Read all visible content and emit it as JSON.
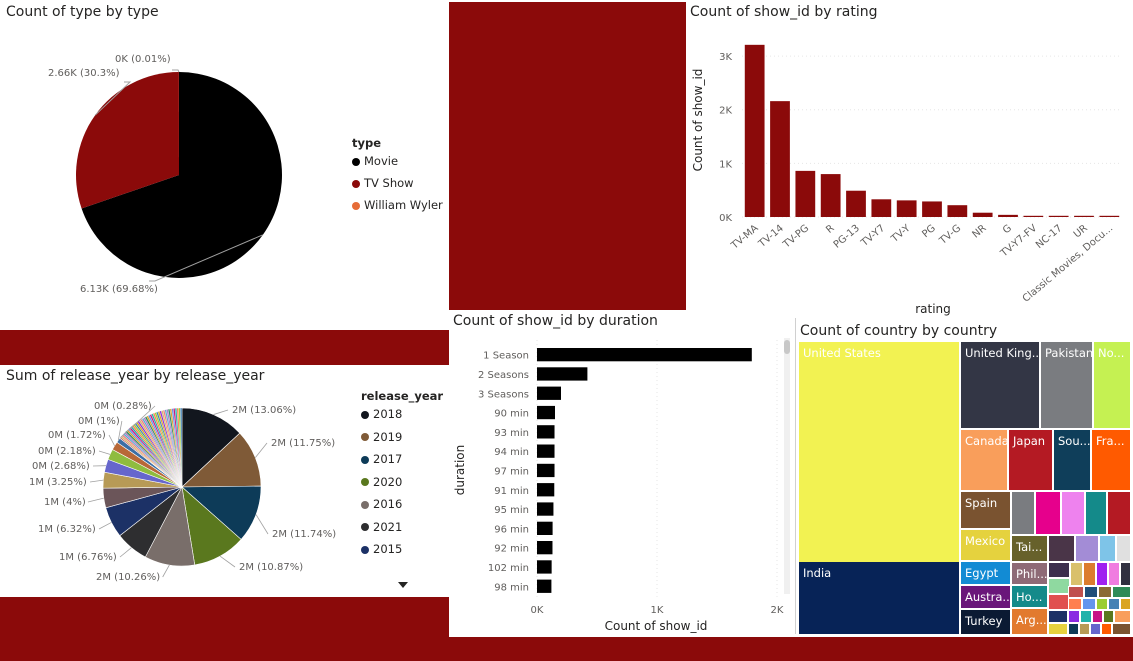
{
  "colors": {
    "accent": "#8b0a0a",
    "black": "#000000",
    "orange": "#e66c37"
  },
  "chart_data": [
    {
      "id": "type",
      "type": "pie",
      "title": "Count of type by type",
      "legend_title": "type",
      "legend_position": "right",
      "slices": [
        {
          "label": "Movie",
          "value": 6130,
          "color": "#000000",
          "data_label": "6.13K (69.68%)"
        },
        {
          "label": "TV Show",
          "value": 2660,
          "color": "#8b0a0a",
          "data_label": "2.66K (30.3%)"
        },
        {
          "label": "William Wyler",
          "value": 1,
          "color": "#e66c37",
          "data_label": "0K (0.01%)"
        }
      ]
    },
    {
      "id": "rating",
      "type": "bar",
      "title": "Count of show_id by rating",
      "xlabel": "rating",
      "ylabel": "Count of show_id",
      "ylim": [
        0,
        3300
      ],
      "yticks": [
        "0K",
        "1K",
        "2K",
        "3K"
      ],
      "ytick_values": [
        0,
        1000,
        2000,
        3000
      ],
      "color": "#8b0a0a",
      "categories": [
        "TV-MA",
        "TV-14",
        "TV-PG",
        "R",
        "PG-13",
        "TV-Y7",
        "TV-Y",
        "PG",
        "TV-G",
        "NR",
        "G",
        "TV-Y7-FV",
        "NC-17",
        "UR",
        "Classic Movies, Docu..."
      ],
      "values": [
        3210,
        2160,
        860,
        800,
        490,
        330,
        310,
        290,
        220,
        80,
        40,
        6,
        3,
        3,
        1
      ]
    },
    {
      "id": "release_year",
      "type": "pie",
      "title": "Sum of release_year by release_year",
      "legend_title": "release_year",
      "legend_position": "right",
      "legend": [
        {
          "label": "2018",
          "color": "#12161e"
        },
        {
          "label": "2019",
          "color": "#7f5a37"
        },
        {
          "label": "2017",
          "color": "#0d3b58"
        },
        {
          "label": "2020",
          "color": "#5a781e"
        },
        {
          "label": "2016",
          "color": "#796e6a"
        },
        {
          "label": "2021",
          "color": "#2e2e30"
        },
        {
          "label": "2015",
          "color": "#1c3166"
        }
      ],
      "slices": [
        {
          "value": 13.06,
          "color": "#12161e",
          "data_label": "2M (13.06%)"
        },
        {
          "value": 11.75,
          "color": "#7f5a37",
          "data_label": "2M (11.75%)"
        },
        {
          "value": 11.74,
          "color": "#0d3b58",
          "data_label": "2M (11.74%)"
        },
        {
          "value": 10.87,
          "color": "#5a781e",
          "data_label": "2M (10.87%)"
        },
        {
          "value": 10.26,
          "color": "#796e6a",
          "data_label": "2M (10.26%)"
        },
        {
          "value": 6.76,
          "color": "#2e2e30",
          "data_label": "1M (6.76%)"
        },
        {
          "value": 6.32,
          "color": "#1c3166",
          "data_label": "1M (6.32%)"
        },
        {
          "value": 4.0,
          "color": "#6b5559",
          "data_label": "1M (4%)"
        },
        {
          "value": 3.25,
          "color": "#b79a56",
          "data_label": "1M (3.25%)"
        },
        {
          "value": 2.68,
          "color": "#6666cc",
          "data_label": "0M (2.68%)"
        },
        {
          "value": 2.18,
          "color": "#8fbc3f",
          "data_label": "0M (2.18%)"
        },
        {
          "value": 1.72,
          "color": "#b86838",
          "data_label": "0M (1.72%)"
        },
        {
          "value": 1.0,
          "color": "#3b6ea5",
          "data_label": "0M (1%)"
        },
        {
          "value": 0.28,
          "color": "#c0504d",
          "data_label": "0M (0.28%)"
        }
      ]
    },
    {
      "id": "duration",
      "type": "bar",
      "orientation": "horizontal",
      "title": "Count of show_id by duration",
      "xlabel": "Count of show_id",
      "ylabel": "duration",
      "xlim": [
        0,
        2000
      ],
      "xticks": [
        "0K",
        "1K",
        "2K"
      ],
      "xtick_values": [
        0,
        1000,
        2000
      ],
      "color": "#000000",
      "categories": [
        "1 Season",
        "2 Seasons",
        "3 Seasons",
        "90 min",
        "93 min",
        "94 min",
        "97 min",
        "91 min",
        "95 min",
        "96 min",
        "92 min",
        "102 min",
        "98 min"
      ],
      "values": [
        1790,
        420,
        200,
        150,
        146,
        146,
        146,
        144,
        137,
        130,
        129,
        122,
        120
      ]
    },
    {
      "id": "country",
      "type": "treemap",
      "title": "Count of country by country",
      "cells": [
        {
          "label": "United States",
          "color": "#f2f252",
          "text_color": "#ffffff"
        },
        {
          "label": "India",
          "color": "#072357",
          "text_color": "#ffffff"
        },
        {
          "label": "United King...",
          "color": "#333645",
          "text_color": "#ffffff"
        },
        {
          "label": "Pakistan",
          "color": "#7a7c80",
          "text_color": "#ffffff"
        },
        {
          "label": "No...",
          "color": "#c5f152",
          "text_color": "#ffffff"
        },
        {
          "label": "Canada",
          "color": "#f99e5b",
          "text_color": "#ffffff"
        },
        {
          "label": "Japan",
          "color": "#b41a23",
          "text_color": "#ffffff"
        },
        {
          "label": "Sou...",
          "color": "#0f3e5a",
          "text_color": "#ffffff"
        },
        {
          "label": "Fra...",
          "color": "#ff5a00",
          "text_color": "#ffffff"
        },
        {
          "label": "Spain",
          "color": "#7a5330",
          "text_color": "#ffffff"
        },
        {
          "label": "Mexico",
          "color": "#e5d23e",
          "text_color": "#ffffff"
        },
        {
          "label": "Egypt",
          "color": "#128bd4",
          "text_color": "#ffffff"
        },
        {
          "label": "Austra...",
          "color": "#6a167a",
          "text_color": "#ffffff"
        },
        {
          "label": "Turkey",
          "color": "#0b1a33",
          "text_color": "#ffffff"
        },
        {
          "label": "Tai...",
          "color": "#67612b",
          "text_color": "#ffffff"
        },
        {
          "label": "Phil...",
          "color": "#8e6a76",
          "text_color": "#ffffff"
        },
        {
          "label": "Ho...",
          "color": "#148a8a",
          "text_color": "#ffffff"
        },
        {
          "label": "Arg...",
          "color": "#e27a2e",
          "text_color": "#ffffff"
        }
      ]
    }
  ]
}
